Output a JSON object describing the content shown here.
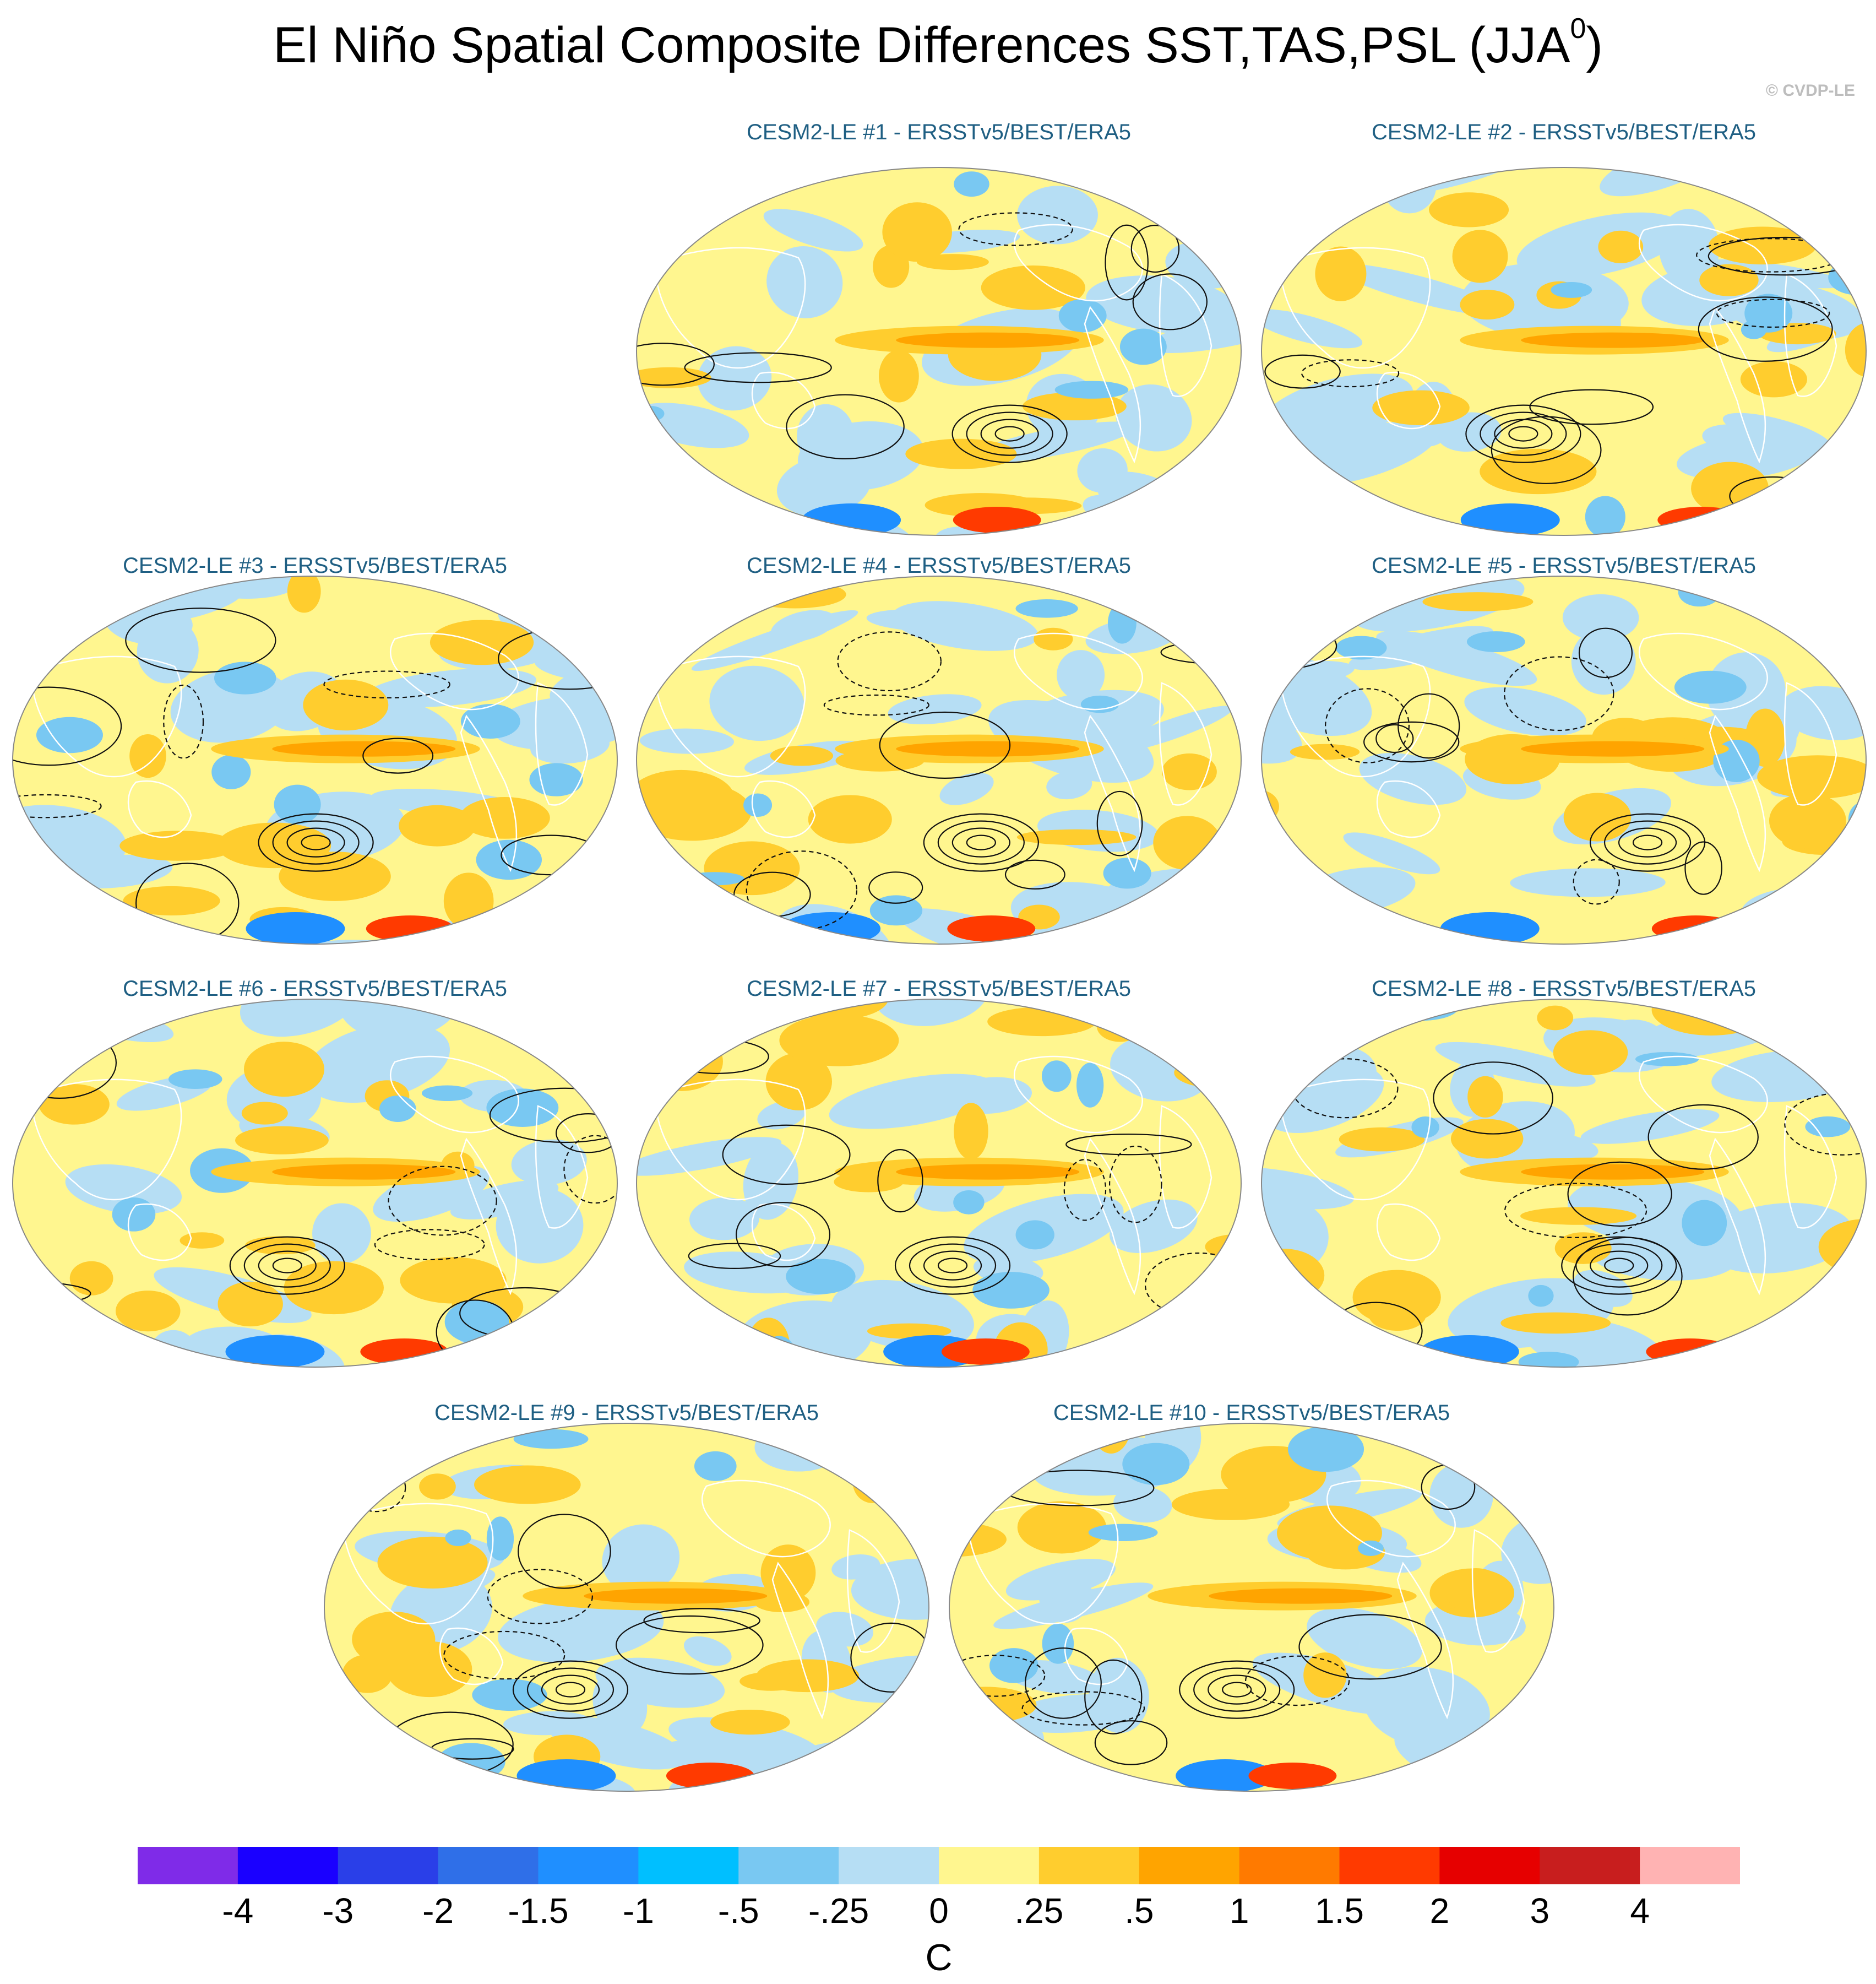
{
  "title": {
    "main": "El Niño Spatial Composite Differences SST,TAS,PSL (JJA",
    "superscript": "0",
    "close": ")"
  },
  "credit": "© CVDP-LE",
  "colors": {
    "panel_title": "#1f5f83",
    "land_outline": "#ffffff",
    "contour": "#111111"
  },
  "chart_data": {
    "type": "heatmap",
    "projection": "Robinson (Pacific-centered)",
    "variables": [
      "SST",
      "TAS",
      "PSL"
    ],
    "season": "JJA",
    "contours": "PSL differences (solid positive, dashed negative)",
    "panels": [
      {
        "label": "CESM2-LE #1 - ERSSTv5/BEST/ERA5",
        "member": 1
      },
      {
        "label": "CESM2-LE #2 - ERSSTv5/BEST/ERA5",
        "member": 2
      },
      {
        "label": "CESM2-LE #3 - ERSSTv5/BEST/ERA5",
        "member": 3
      },
      {
        "label": "CESM2-LE #4 - ERSSTv5/BEST/ERA5",
        "member": 4
      },
      {
        "label": "CESM2-LE #5 - ERSSTv5/BEST/ERA5",
        "member": 5
      },
      {
        "label": "CESM2-LE #6 - ERSSTv5/BEST/ERA5",
        "member": 6
      },
      {
        "label": "CESM2-LE #7 - ERSSTv5/BEST/ERA5",
        "member": 7
      },
      {
        "label": "CESM2-LE #8 - ERSSTv5/BEST/ERA5",
        "member": 8
      },
      {
        "label": "CESM2-LE #9 - ERSSTv5/BEST/ERA5",
        "member": 9
      },
      {
        "label": "CESM2-LE #10 - ERSSTv5/BEST/ERA5",
        "member": 10
      }
    ],
    "colorbar": {
      "units": "C",
      "tick_labels": [
        "-4",
        "-3",
        "-2",
        "-1.5",
        "-1",
        "-.5",
        "-.25",
        "0",
        ".25",
        ".5",
        "1",
        "1.5",
        "2",
        "3",
        "4"
      ],
      "colors": [
        "#7f2be8",
        "#1a00ff",
        "#2a3fe8",
        "#2f6fe8",
        "#1f8fff",
        "#00bfff",
        "#79c8f2",
        "#b6def4",
        "#fff68f",
        "#ffcd2e",
        "#ffa400",
        "#ff7a00",
        "#ff3a00",
        "#e60000",
        "#c81e1e",
        "#ffb3b3"
      ]
    }
  }
}
